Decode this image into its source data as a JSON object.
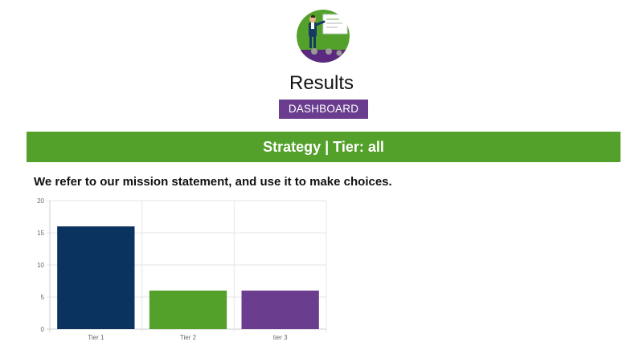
{
  "hero": {
    "icon": "presenter-whiteboard-icon",
    "colors": {
      "background": "#53a02a",
      "floor": "#5b2a80"
    }
  },
  "page": {
    "title": "Results"
  },
  "actions": {
    "dashboard_label": "DASHBOARD"
  },
  "section": {
    "banner": "Strategy | Tier: all"
  },
  "question": {
    "text": "We refer to our mission statement, and use it to make choices."
  },
  "colors": {
    "accent_purple": "#6a3d8f",
    "accent_green": "#53a02a"
  },
  "chart_data": {
    "type": "bar",
    "categories": [
      "Tier 1",
      "Tier 2",
      "tier 3"
    ],
    "values": [
      16,
      6,
      6
    ],
    "colors": [
      "#0b3360",
      "#53a02a",
      "#6a3d8f"
    ],
    "ylim": [
      0,
      20
    ],
    "yticks": [
      0,
      5,
      10,
      15,
      20
    ],
    "grid": true,
    "legend": "none"
  }
}
